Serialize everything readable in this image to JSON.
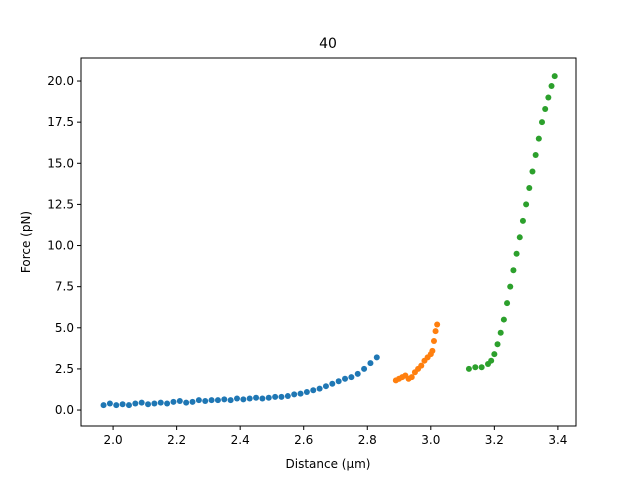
{
  "chart_data": {
    "type": "scatter",
    "title": "40",
    "xlabel": "Distance (μm)",
    "ylabel": "Force (pN)",
    "xlim": [
      1.899,
      3.457
    ],
    "ylim": [
      -0.97,
      21.4
    ],
    "xticks": [
      {
        "value": 2,
        "label": "2.0"
      },
      2.2,
      2.4,
      2.6,
      2.8,
      {
        "value": 3,
        "label": "3.0"
      },
      3.2,
      3.4
    ],
    "yticks": [
      {
        "value": 0,
        "label": "0.0"
      },
      2.5,
      {
        "value": 5,
        "label": "5.0"
      },
      7.5,
      {
        "value": 10,
        "label": "10.0"
      },
      12.5,
      {
        "value": 15,
        "label": "15.0"
      },
      17.5,
      {
        "value": 20,
        "label": "20.0"
      }
    ],
    "series": [
      {
        "color": "#1f77b4",
        "x": [
          1.97,
          1.99,
          2.01,
          2.03,
          2.05,
          2.07,
          2.09,
          2.11,
          2.13,
          2.15,
          2.17,
          2.19,
          2.21,
          2.23,
          2.25,
          2.27,
          2.29,
          2.31,
          2.33,
          2.35,
          2.37,
          2.39,
          2.41,
          2.43,
          2.45,
          2.47,
          2.49,
          2.51,
          2.53,
          2.55,
          2.57,
          2.59,
          2.61,
          2.63,
          2.65,
          2.67,
          2.69,
          2.71,
          2.73,
          2.75,
          2.77,
          2.79,
          2.81,
          2.83
        ],
        "values": [
          0.3,
          0.4,
          0.3,
          0.35,
          0.3,
          0.4,
          0.45,
          0.35,
          0.4,
          0.45,
          0.4,
          0.5,
          0.55,
          0.45,
          0.5,
          0.6,
          0.55,
          0.6,
          0.6,
          0.65,
          0.6,
          0.7,
          0.65,
          0.7,
          0.75,
          0.7,
          0.75,
          0.8,
          0.8,
          0.85,
          0.95,
          1.0,
          1.1,
          1.2,
          1.3,
          1.45,
          1.6,
          1.75,
          1.9,
          2.0,
          2.2,
          2.5,
          2.85,
          3.2
        ]
      },
      {
        "color": "#ff7f0e",
        "x": [
          2.89,
          2.9,
          2.91,
          2.92,
          2.93,
          2.94,
          2.95,
          2.96,
          2.97,
          2.98,
          2.99,
          3.0,
          3.005,
          3.01,
          3.015,
          3.02
        ],
        "values": [
          1.8,
          1.9,
          2.0,
          2.1,
          1.9,
          2.0,
          2.3,
          2.5,
          2.7,
          3.0,
          3.2,
          3.4,
          3.6,
          4.2,
          4.8,
          5.2
        ]
      },
      {
        "color": "#2ca02c",
        "x": [
          3.12,
          3.14,
          3.16,
          3.18,
          3.19,
          3.2,
          3.21,
          3.22,
          3.23,
          3.24,
          3.25,
          3.26,
          3.27,
          3.28,
          3.29,
          3.3,
          3.31,
          3.32,
          3.33,
          3.34,
          3.35,
          3.36,
          3.37,
          3.38,
          3.39
        ],
        "values": [
          2.5,
          2.6,
          2.6,
          2.8,
          3.0,
          3.4,
          4.0,
          4.7,
          5.5,
          6.5,
          7.5,
          8.5,
          9.5,
          10.5,
          11.5,
          12.5,
          13.5,
          14.5,
          15.5,
          16.5,
          17.5,
          18.3,
          19.0,
          19.7,
          20.3
        ]
      }
    ]
  }
}
